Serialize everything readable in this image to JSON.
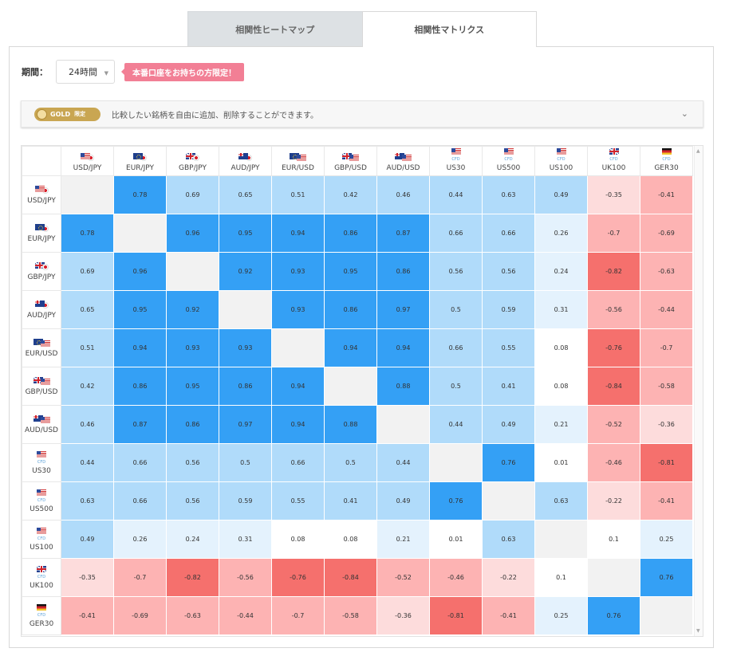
{
  "tabs": [
    {
      "label": "相関性ヒートマップ",
      "active": false
    },
    {
      "label": "相関性マトリクス",
      "active": true
    }
  ],
  "period": {
    "label": "期間：",
    "selected": "24時間",
    "badge": "本番口座をお持ちの方限定！"
  },
  "gold_bar": {
    "badge": "GOLD",
    "badge_limited": "限定",
    "text": "比較したい銘柄を自由に追加、削除することができます。"
  },
  "colors": {
    "strong_pos": "#34a0f5",
    "mid_pos": "#b0dbfa",
    "weak_pos": "#e4f2fd",
    "neutral": "#ffffff",
    "diagonal": "#f2f2f2",
    "weak_neg": "#fddcdc",
    "mid_neg": "#fdb3b3",
    "strong_neg": "#f5706d"
  },
  "instruments": [
    {
      "label": "USD/JPY",
      "flags": [
        "us",
        "jp"
      ],
      "cfd": false
    },
    {
      "label": "EUR/JPY",
      "flags": [
        "eu",
        "jp"
      ],
      "cfd": false
    },
    {
      "label": "GBP/JPY",
      "flags": [
        "gb",
        "jp"
      ],
      "cfd": false
    },
    {
      "label": "AUD/JPY",
      "flags": [
        "au",
        "jp"
      ],
      "cfd": false
    },
    {
      "label": "EUR/USD",
      "flags": [
        "eu",
        "us"
      ],
      "cfd": false
    },
    {
      "label": "GBP/USD",
      "flags": [
        "gb",
        "us"
      ],
      "cfd": false
    },
    {
      "label": "AUD/USD",
      "flags": [
        "au",
        "us"
      ],
      "cfd": false
    },
    {
      "label": "US30",
      "flags": [
        "us"
      ],
      "cfd": true
    },
    {
      "label": "US500",
      "flags": [
        "us"
      ],
      "cfd": true
    },
    {
      "label": "US100",
      "flags": [
        "us"
      ],
      "cfd": true
    },
    {
      "label": "UK100",
      "flags": [
        "gb"
      ],
      "cfd": true
    },
    {
      "label": "GER30",
      "flags": [
        "de"
      ],
      "cfd": true
    }
  ],
  "cfd_label": "CFD",
  "matrix": [
    [
      null,
      "0.78",
      "0.69",
      "0.65",
      "0.51",
      "0.42",
      "0.46",
      "0.44",
      "0.63",
      "0.49",
      "-0.35",
      "-0.41"
    ],
    [
      "0.78",
      null,
      "0.96",
      "0.95",
      "0.94",
      "0.86",
      "0.87",
      "0.66",
      "0.66",
      "0.26",
      "-0.7",
      "-0.69"
    ],
    [
      "0.69",
      "0.96",
      null,
      "0.92",
      "0.93",
      "0.95",
      "0.86",
      "0.56",
      "0.56",
      "0.24",
      "-0.82",
      "-0.63"
    ],
    [
      "0.65",
      "0.95",
      "0.92",
      null,
      "0.93",
      "0.86",
      "0.97",
      "0.5",
      "0.59",
      "0.31",
      "-0.56",
      "-0.44"
    ],
    [
      "0.51",
      "0.94",
      "0.93",
      "0.93",
      null,
      "0.94",
      "0.94",
      "0.66",
      "0.55",
      "0.08",
      "-0.76",
      "-0.7"
    ],
    [
      "0.42",
      "0.86",
      "0.95",
      "0.86",
      "0.94",
      null,
      "0.88",
      "0.5",
      "0.41",
      "0.08",
      "-0.84",
      "-0.58"
    ],
    [
      "0.46",
      "0.87",
      "0.86",
      "0.97",
      "0.94",
      "0.88",
      null,
      "0.44",
      "0.49",
      "0.21",
      "-0.52",
      "-0.36"
    ],
    [
      "0.44",
      "0.66",
      "0.56",
      "0.5",
      "0.66",
      "0.5",
      "0.44",
      null,
      "0.76",
      "0.01",
      "-0.46",
      "-0.81"
    ],
    [
      "0.63",
      "0.66",
      "0.56",
      "0.59",
      "0.55",
      "0.41",
      "0.49",
      "0.76",
      null,
      "0.63",
      "-0.22",
      "-0.41"
    ],
    [
      "0.49",
      "0.26",
      "0.24",
      "0.31",
      "0.08",
      "0.08",
      "0.21",
      "0.01",
      "0.63",
      null,
      "0.1",
      "0.25"
    ],
    [
      "-0.35",
      "-0.7",
      "-0.82",
      "-0.56",
      "-0.76",
      "-0.84",
      "-0.52",
      "-0.46",
      "-0.22",
      "0.1",
      null,
      "0.76"
    ],
    [
      "-0.41",
      "-0.69",
      "-0.63",
      "-0.44",
      "-0.7",
      "-0.58",
      "-0.36",
      "-0.81",
      "-0.41",
      "0.25",
      "0.76",
      null
    ]
  ]
}
